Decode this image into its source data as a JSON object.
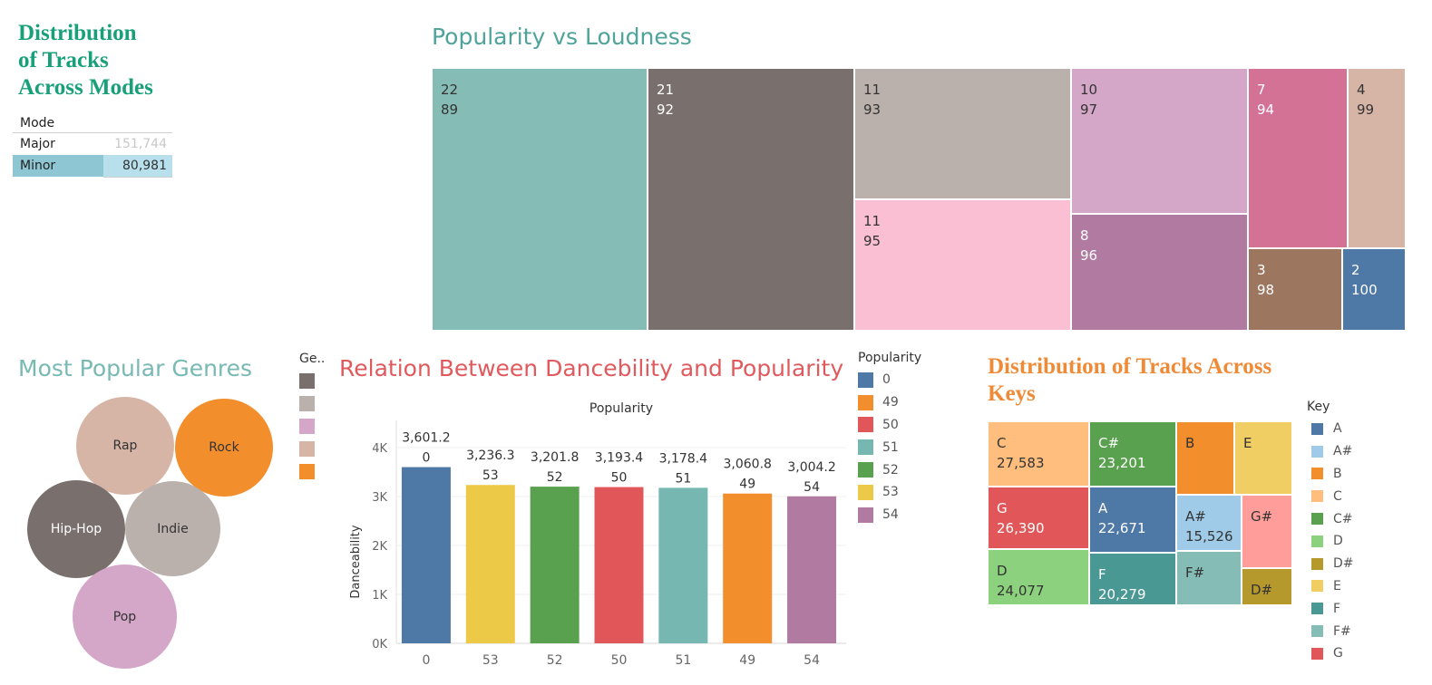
{
  "modes": {
    "title_lines": [
      "Distribution",
      "of Tracks",
      "Across Modes"
    ],
    "column_header": "Mode",
    "rows": [
      {
        "label": "Major",
        "value": "151,744"
      },
      {
        "label": "Minor",
        "value": "80,981"
      }
    ]
  },
  "loudness": {
    "title": "Popularity vs Loudness",
    "cells": [
      {
        "top": "22",
        "bottom": "89",
        "color": "#86bcb6",
        "text_color": "#333333"
      },
      {
        "top": "21",
        "bottom": "92",
        "color": "#796f6c",
        "text_color": "#ffffff"
      },
      {
        "top": "11",
        "bottom": "93",
        "color": "#bab0ac",
        "text_color": "#333333"
      },
      {
        "top": "11",
        "bottom": "95",
        "color": "#fabfd2",
        "text_color": "#333333"
      },
      {
        "top": "10",
        "bottom": "97",
        "color": "#d4a6c8",
        "text_color": "#333333"
      },
      {
        "top": "8",
        "bottom": "96",
        "color": "#b07aa1",
        "text_color": "#ffffff"
      },
      {
        "top": "7",
        "bottom": "94",
        "color": "#d37295",
        "text_color": "#ffffff"
      },
      {
        "top": "4",
        "bottom": "99",
        "color": "#d7b5a6",
        "text_color": "#333333"
      },
      {
        "top": "3",
        "bottom": "98",
        "color": "#9d7660",
        "text_color": "#ffffff"
      },
      {
        "top": "2",
        "bottom": "100",
        "color": "#4e79a7",
        "text_color": "#ffffff"
      }
    ]
  },
  "genres": {
    "title": "Most Popular Genres",
    "legend_title": "Ge..",
    "legend_colors": [
      "#796f6c",
      "#bab0ac",
      "#d4a6c8",
      "#d7b5a6",
      "#f28e2b"
    ],
    "bubbles": [
      {
        "label": "Rap",
        "color": "#d7b5a6",
        "text_color": "#333333"
      },
      {
        "label": "Rock",
        "color": "#f28e2b",
        "text_color": "#333333"
      },
      {
        "label": "Hip-Hop",
        "color": "#796f6c",
        "text_color": "#ffffff"
      },
      {
        "label": "Indie",
        "color": "#bab0ac",
        "text_color": "#333333"
      },
      {
        "label": "Pop",
        "color": "#d4a6c8",
        "text_color": "#333333"
      }
    ]
  },
  "dance": {
    "title": "Relation Between Dancebility and Popularity"
  },
  "popularity_legend": {
    "title": "Popularity",
    "items": [
      {
        "label": "0",
        "color": "#4e79a7"
      },
      {
        "label": "49",
        "color": "#f28e2b"
      },
      {
        "label": "50",
        "color": "#e15759"
      },
      {
        "label": "51",
        "color": "#76b7b2"
      },
      {
        "label": "52",
        "color": "#59a14f"
      },
      {
        "label": "53",
        "color": "#edc948"
      },
      {
        "label": "54",
        "color": "#b07aa1"
      }
    ]
  },
  "keys": {
    "title_lines": [
      "Distribution of Tracks Across",
      "Keys"
    ],
    "cells": [
      {
        "key": "C",
        "value": "27,583",
        "color": "#ffbe7d",
        "text_color": "#333333"
      },
      {
        "key": "C#",
        "value": "23,201",
        "color": "#59a14f",
        "text_color": "#ffffff"
      },
      {
        "key": "B",
        "value": "",
        "color": "#f28e2b",
        "text_color": "#333333"
      },
      {
        "key": "E",
        "value": "",
        "color": "#f1ce63",
        "text_color": "#333333"
      },
      {
        "key": "G",
        "value": "26,390",
        "color": "#e15759",
        "text_color": "#ffffff"
      },
      {
        "key": "A",
        "value": "22,671",
        "color": "#4e79a7",
        "text_color": "#ffffff"
      },
      {
        "key": "A#",
        "value": "15,526",
        "color": "#a0cbe8",
        "text_color": "#333333"
      },
      {
        "key": "G#",
        "value": "",
        "color": "#ff9d9a",
        "text_color": "#333333"
      },
      {
        "key": "D",
        "value": "24,077",
        "color": "#8cd17d",
        "text_color": "#333333"
      },
      {
        "key": "F",
        "value": "20,279",
        "color": "#499894",
        "text_color": "#ffffff"
      },
      {
        "key": "F#",
        "value": "",
        "color": "#86bcb6",
        "text_color": "#333333"
      },
      {
        "key": "D#",
        "value": "",
        "color": "#b6992d",
        "text_color": "#333333"
      }
    ],
    "legend_title": "Key",
    "legend": [
      {
        "label": "A",
        "color": "#4e79a7"
      },
      {
        "label": "A#",
        "color": "#a0cbe8"
      },
      {
        "label": "B",
        "color": "#f28e2b"
      },
      {
        "label": "C",
        "color": "#ffbe7d"
      },
      {
        "label": "C#",
        "color": "#59a14f"
      },
      {
        "label": "D",
        "color": "#8cd17d"
      },
      {
        "label": "D#",
        "color": "#b6992d"
      },
      {
        "label": "E",
        "color": "#f1ce63"
      },
      {
        "label": "F",
        "color": "#499894"
      },
      {
        "label": "F#",
        "color": "#86bcb6"
      },
      {
        "label": "G",
        "color": "#e15759"
      }
    ]
  },
  "chart_data": [
    {
      "type": "table",
      "title": "Distribution of Tracks Across Modes",
      "columns": [
        "Mode",
        ""
      ],
      "rows": [
        [
          "Major",
          151744
        ],
        [
          "Minor",
          80981
        ]
      ]
    },
    {
      "type": "treemap",
      "title": "Popularity vs Loudness",
      "cells": [
        {
          "value": 22,
          "label": 89
        },
        {
          "value": 21,
          "label": 92
        },
        {
          "value": 11,
          "label": 93
        },
        {
          "value": 11,
          "label": 95
        },
        {
          "value": 10,
          "label": 97
        },
        {
          "value": 8,
          "label": 96
        },
        {
          "value": 7,
          "label": 94
        },
        {
          "value": 4,
          "label": 99
        },
        {
          "value": 3,
          "label": 98
        },
        {
          "value": 2,
          "label": 100
        }
      ]
    },
    {
      "type": "bubble",
      "title": "Most Popular Genres",
      "categories": [
        "Rap",
        "Rock",
        "Hip-Hop",
        "Indie",
        "Pop"
      ]
    },
    {
      "type": "bar",
      "title": "Relation Between Dancebility and Popularity",
      "subtitle": "Popularity",
      "categories": [
        "0",
        "53",
        "52",
        "50",
        "51",
        "49",
        "54"
      ],
      "values": [
        3601.2,
        3236.3,
        3201.8,
        3193.4,
        3178.4,
        3060.8,
        3004.2
      ],
      "value_labels": [
        "3,601.2",
        "3,236.3",
        "3,201.8",
        "3,193.4",
        "3,178.4",
        "3,060.8",
        "3,004.2"
      ],
      "colors": [
        "#4e79a7",
        "#edc948",
        "#59a14f",
        "#e15759",
        "#76b7b2",
        "#f28e2b",
        "#b07aa1"
      ],
      "xlabel": "",
      "ylabel": "Danceability",
      "ylim": [
        0,
        4000
      ],
      "yticks": [
        0,
        1000,
        2000,
        3000,
        4000
      ],
      "ytick_labels": [
        "0K",
        "1K",
        "2K",
        "3K",
        "4K"
      ],
      "grid": true
    },
    {
      "type": "treemap",
      "title": "Distribution of Tracks Across Keys",
      "cells": [
        {
          "key": "C",
          "value": 27583
        },
        {
          "key": "G",
          "value": 26390
        },
        {
          "key": "D",
          "value": 24077
        },
        {
          "key": "C#",
          "value": 23201
        },
        {
          "key": "A",
          "value": 22671
        },
        {
          "key": "F",
          "value": 20279
        },
        {
          "key": "A#",
          "value": 15526
        },
        {
          "key": "B"
        },
        {
          "key": "E"
        },
        {
          "key": "G#"
        },
        {
          "key": "F#"
        },
        {
          "key": "D#"
        }
      ]
    }
  ]
}
